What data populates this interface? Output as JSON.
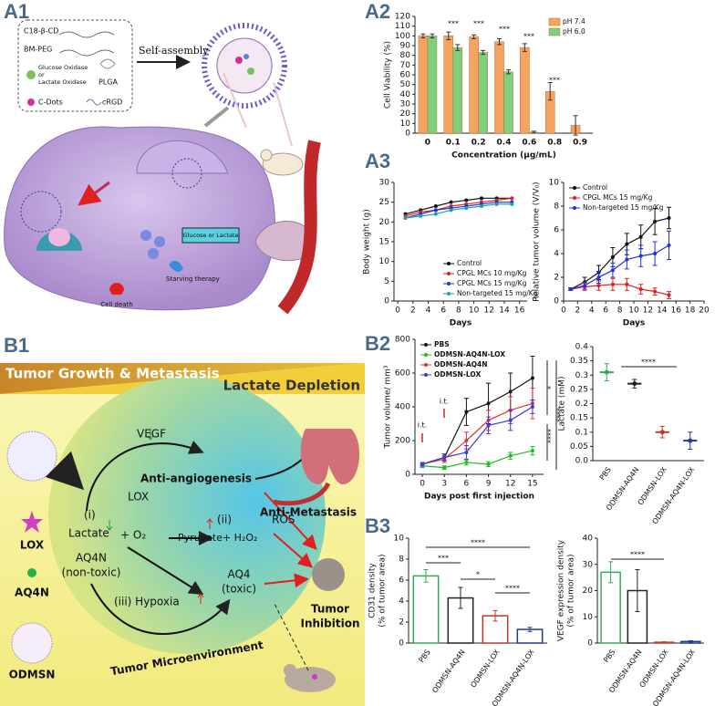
{
  "panel_labels": [
    "A1",
    "A2",
    "A3",
    "B1",
    "B2",
    "B3"
  ],
  "a1": {
    "c18": "C18-β-CD",
    "bmpeg": "BM-PEG",
    "oxidase": [
      "Glucose Oxidase",
      "or",
      "Lactate Oxidase"
    ],
    "plga": "PLGA",
    "cdots": "C-Dots",
    "crgd": "cRGD",
    "self_assembly": "Self-assembly",
    "substrate": "Glucose or Lactate",
    "starving": "Starving therapy",
    "death": "Cell death"
  },
  "b1": {
    "header_left": "Tumor Growth & Metastasis",
    "header_right": "Lactate Depletion",
    "vegf": "VEGF",
    "anti_angio": "Anti-angiogenesis",
    "anti_meta": "Anti-Metastasis",
    "step1": "(i)",
    "lactate": "Lactate",
    "o2": "+ O₂",
    "lox_center": "LOX",
    "step2": "(ii)",
    "pyruvate": "Pyruvate+ H₂O₂",
    "ros": "ROS",
    "aq4n": [
      "AQ4N",
      "(non-toxic)"
    ],
    "hypoxia": "(iii)   Hypoxia",
    "aq4": [
      "AQ4",
      "(toxic)"
    ],
    "inhibition": [
      "Tumor",
      "Inhibition"
    ],
    "microenv": "Tumor Microenvironment",
    "legend": [
      "LOX",
      "AQ4N",
      "ODMSN"
    ]
  },
  "chart_data": [
    {
      "type": "bar",
      "categories": [
        "0",
        "0.1",
        "0.2",
        "0.4",
        "0.6",
        "0.8",
        "0.9"
      ],
      "series": [
        {
          "name": "pH 7.4",
          "color": "#f4a460",
          "values": [
            100,
            100,
            99,
            94,
            88,
            43,
            8
          ],
          "errors": [
            2,
            4,
            2,
            3,
            4,
            9,
            10
          ]
        },
        {
          "name": "pH 6.0",
          "color": "#7fcf7f",
          "values": [
            100,
            88,
            83,
            63,
            1,
            0,
            0
          ],
          "errors": [
            2,
            3,
            2,
            2,
            1,
            0,
            0
          ]
        }
      ],
      "xlabel": "Concentration (μg/mL)",
      "ylabel": "Cell Viability (%)",
      "ylim": [
        0,
        120
      ],
      "yticks": [
        0,
        10,
        20,
        30,
        40,
        50,
        60,
        70,
        80,
        90,
        100,
        110,
        120
      ],
      "legend": "upper right",
      "annotations": [
        "***",
        "***",
        "***",
        "***",
        "***"
      ]
    },
    {
      "type": "line",
      "x": [
        1,
        3,
        5,
        7,
        9,
        11,
        13,
        15
      ],
      "xlim": [
        -0.5,
        17
      ],
      "xticks": [
        0,
        2,
        4,
        6,
        8,
        10,
        12,
        14,
        16
      ],
      "ylim": [
        0,
        30
      ],
      "yticks": [
        0,
        5,
        10,
        15,
        20,
        25,
        30
      ],
      "xlabel": "Days",
      "ylabel": "Body weight (g)",
      "legend": "lower right",
      "series": [
        {
          "name": "Control",
          "color": "#111111",
          "values": [
            22,
            23,
            24,
            25,
            25.5,
            26,
            26,
            26
          ]
        },
        {
          "name": "CPGL MCs 10 mg/Kg",
          "color": "#e02020",
          "values": [
            21.5,
            22.5,
            23,
            24,
            24.5,
            25,
            25.5,
            26
          ]
        },
        {
          "name": "CPGL MCs 15 mg/Kg",
          "color": "#2030e0",
          "values": [
            21,
            22,
            23,
            23.5,
            24,
            24.5,
            25,
            25
          ]
        },
        {
          "name": "Non-targeted 15 mg/Kg",
          "color": "#1aa3a3",
          "values": [
            21,
            21.5,
            22,
            23,
            23.5,
            24,
            24.5,
            24.5
          ]
        }
      ]
    },
    {
      "type": "line",
      "x": [
        1,
        3,
        5,
        7,
        9,
        11,
        13,
        15
      ],
      "xlim": [
        0,
        20
      ],
      "xticks": [
        0,
        2,
        4,
        6,
        8,
        10,
        12,
        14,
        16,
        18,
        20
      ],
      "ylim": [
        0,
        10
      ],
      "yticks": [
        0,
        2,
        4,
        6,
        8,
        10
      ],
      "xlabel": "Days",
      "ylabel": "Relative tumor volume (V/V₀)",
      "legend": "upper left",
      "series": [
        {
          "name": "Control",
          "color": "#111111",
          "values": [
            1,
            1.6,
            2.4,
            3.7,
            4.8,
            5.4,
            6.7,
            7
          ],
          "errors": [
            0.1,
            0.4,
            0.6,
            0.8,
            0.9,
            1,
            1.1,
            0.9
          ]
        },
        {
          "name": "CPGL MCs 15 mg/Kg",
          "color": "#e02020",
          "values": [
            1,
            1.2,
            1.3,
            1.4,
            1.4,
            1,
            0.8,
            0.5
          ],
          "errors": [
            0.1,
            0.3,
            0.4,
            0.5,
            0.5,
            0.4,
            0.3,
            0.3
          ]
        },
        {
          "name": "Non-targeted 15 mg/Kg",
          "color": "#2030e0",
          "values": [
            1,
            1.3,
            2,
            2.6,
            3.5,
            3.8,
            4,
            4.7
          ],
          "errors": [
            0.1,
            0.3,
            0.5,
            0.6,
            0.8,
            0.9,
            1,
            1.2
          ]
        }
      ]
    },
    {
      "type": "line",
      "x": [
        0,
        3,
        6,
        9,
        12,
        15
      ],
      "xlim": [
        -1,
        16.5
      ],
      "xticks": [
        0,
        3,
        6,
        9,
        12,
        15
      ],
      "ylim": [
        0,
        800
      ],
      "yticks": [
        0,
        200,
        400,
        600,
        800
      ],
      "xlabel": "Days post first injection",
      "ylabel": "Tumor volume/ mm³",
      "legend": "upper left",
      "series": [
        {
          "name": "PBS",
          "color": "#111111",
          "values": [
            60,
            100,
            370,
            420,
            490,
            570
          ],
          "errors": [
            10,
            20,
            80,
            120,
            110,
            130
          ]
        },
        {
          "name": "ODMSN-AQ4N-LOX",
          "color": "#22bb22",
          "values": [
            50,
            40,
            70,
            60,
            110,
            140
          ],
          "errors": [
            10,
            10,
            15,
            15,
            20,
            25
          ]
        },
        {
          "name": "ODMSN-AQ4N",
          "color": "#e0303a",
          "values": [
            60,
            90,
            200,
            320,
            380,
            420
          ],
          "errors": [
            10,
            20,
            50,
            60,
            80,
            90
          ]
        },
        {
          "name": "ODMSN-LOX",
          "color": "#3a3ae0",
          "values": [
            60,
            100,
            130,
            290,
            320,
            400
          ],
          "errors": [
            10,
            20,
            40,
            50,
            60,
            40
          ]
        }
      ],
      "annotations": [
        "i.t.",
        "i.t.",
        "*",
        "****",
        "****"
      ]
    },
    {
      "type": "dot",
      "categories": [
        "PBS",
        "ODMSN-AQ4N",
        "ODMSN-LOX",
        "ODMSN-AQ4N-LOX"
      ],
      "values": [
        0.31,
        0.27,
        0.1,
        0.07
      ],
      "errors": [
        0.03,
        0.015,
        0.02,
        0.03
      ],
      "colors": [
        "#33aa55",
        "#222222",
        "#c0392b",
        "#1f3aa0"
      ],
      "ylim": [
        0,
        0.4
      ],
      "yticks": [
        {
          "value": 0,
          "label": "0.0"
        },
        0.05,
        0.1,
        0.15,
        0.2,
        0.25,
        0.3,
        0.35,
        0.4
      ],
      "ylabel": "Lactate (mM)",
      "annotations": [
        "****"
      ]
    },
    {
      "type": "bar",
      "bar_style": "outline",
      "categories": [
        "PBS",
        "ODMSN-AQ4N",
        "ODMSN-LOX",
        "ODMSN-AQ4N-LOX"
      ],
      "values": [
        6.4,
        4.3,
        2.6,
        1.3
      ],
      "errors": [
        0.6,
        1,
        0.5,
        0.2
      ],
      "colors": [
        "#33aa55",
        "#222222",
        "#c0392b",
        "#1f3aa0"
      ],
      "ylim": [
        0,
        10
      ],
      "yticks": [
        0,
        2,
        4,
        6,
        8,
        10
      ],
      "ylabel": [
        "CD31 density",
        "(% of tumor area)"
      ],
      "annotations": [
        "***",
        "*",
        "****",
        "****"
      ]
    },
    {
      "type": "bar",
      "bar_style": "outline",
      "categories": [
        "PBS",
        "ODMSN-AQ4N",
        "ODMSN-LOX",
        "ODMSN-AQ4N-LOX"
      ],
      "values": [
        27,
        20,
        0.3,
        0.6
      ],
      "errors": [
        4,
        8,
        0.2,
        0.3
      ],
      "colors": [
        "#33aa55",
        "#222222",
        "#c0392b",
        "#1f3aa0"
      ],
      "ylim": [
        0,
        40
      ],
      "yticks": [
        0,
        10,
        20,
        30,
        40
      ],
      "ylabel": [
        "VEGF expression density",
        "(% of tumor area)"
      ],
      "annotations": [
        "****"
      ]
    }
  ]
}
